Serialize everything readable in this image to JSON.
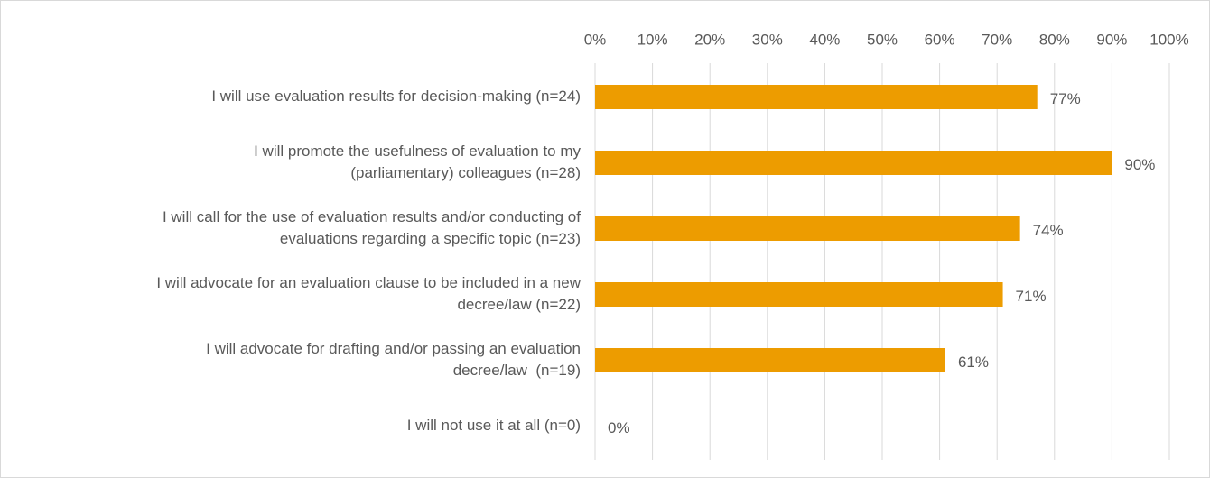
{
  "chart_data": {
    "type": "hbar",
    "categories": [
      [
        "I will use evaluation results for decision-making (n=24)"
      ],
      [
        "I will promote the usefulness of evaluation to my",
        "(parliamentary) colleagues (n=28)"
      ],
      [
        "I will call for the use of evaluation results and/or conducting of",
        "evaluations regarding a specific topic (n=23)"
      ],
      [
        "I will advocate for an evaluation clause to be included in a new",
        "decree/law (n=22)"
      ],
      [
        "I will advocate for drafting and/or passing an evaluation",
        "decree/law  (n=19)"
      ],
      [
        "I will not use it at all (n=0)"
      ]
    ],
    "values": [
      77,
      90,
      74,
      71,
      61,
      0
    ],
    "value_labels": [
      "77%",
      "90%",
      "74%",
      "71%",
      "61%",
      "0%"
    ],
    "color": "#ed9c00",
    "xlim": [
      0,
      100
    ],
    "xticks": [
      {
        "value": 0,
        "label": "0%"
      },
      {
        "value": 10,
        "label": "10%"
      },
      {
        "value": 20,
        "label": "20%"
      },
      {
        "value": 30,
        "label": "30%"
      },
      {
        "value": 40,
        "label": "40%"
      },
      {
        "value": 50,
        "label": "50%"
      },
      {
        "value": 60,
        "label": "60%"
      },
      {
        "value": 70,
        "label": "70%"
      },
      {
        "value": 80,
        "label": "80%"
      },
      {
        "value": 90,
        "label": "90%"
      },
      {
        "value": 100,
        "label": "100%"
      }
    ],
    "grid": true
  }
}
